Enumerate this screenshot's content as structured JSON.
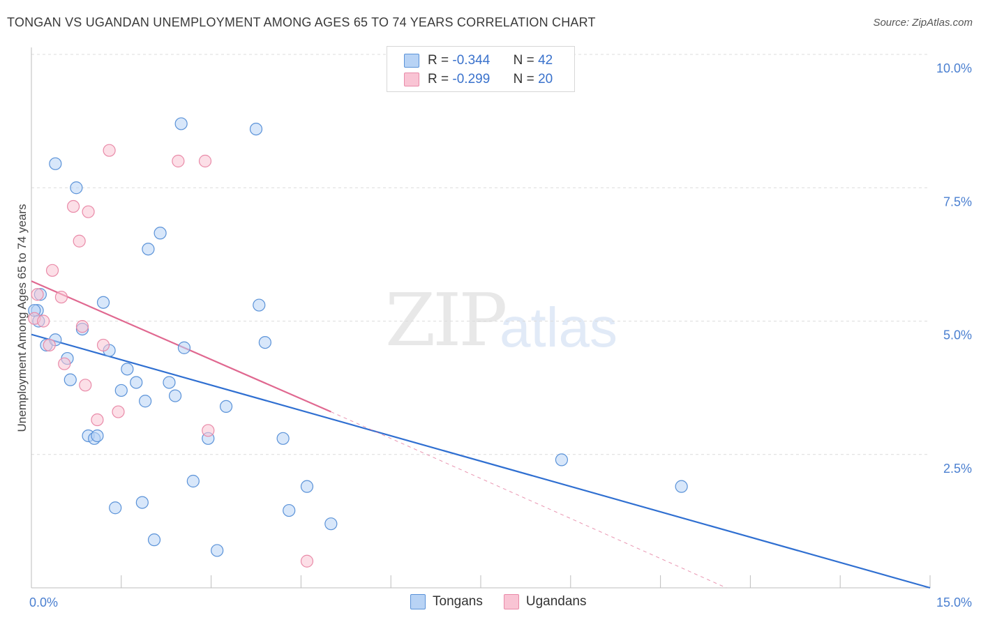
{
  "title": "TONGAN VS UGANDAN UNEMPLOYMENT AMONG AGES 65 TO 74 YEARS CORRELATION CHART",
  "source": "Source: ZipAtlas.com",
  "watermark": {
    "zip": "ZIP",
    "atlas": "atlas"
  },
  "legend": {
    "tongans": {
      "r_label": "R =",
      "r_value": "-0.344",
      "n_label": "N =",
      "n_value": "42"
    },
    "ugandans": {
      "r_label": "R =",
      "r_value": "-0.299",
      "n_label": "N =",
      "n_value": "20"
    }
  },
  "colors": {
    "tongan_fill": "#b8d3f5",
    "tongan_stroke": "#5a92d8",
    "tongan_line": "#2f6fd1",
    "ugandan_fill": "#f9c4d4",
    "ugandan_stroke": "#e98aa8",
    "ugandan_line": "#e06890"
  },
  "chart_data": {
    "type": "scatter",
    "title": "TONGAN VS UGANDAN UNEMPLOYMENT AMONG AGES 65 TO 74 YEARS CORRELATION CHART",
    "xlabel": "",
    "ylabel": "Unemployment Among Ages 65 to 74 years",
    "xlim": [
      0,
      15
    ],
    "ylim": [
      0,
      10
    ],
    "x_tick_labels": [
      "0.0%",
      "15.0%"
    ],
    "y_tick_labels": [
      "2.5%",
      "5.0%",
      "7.5%",
      "10.0%"
    ],
    "y_ticks": [
      2.5,
      5.0,
      7.5,
      10.0
    ],
    "legend_position": "bottom",
    "series": [
      {
        "name": "Tongans",
        "points": [
          [
            0.1,
            5.2
          ],
          [
            0.15,
            5.5
          ],
          [
            0.25,
            4.55
          ],
          [
            0.4,
            4.65
          ],
          [
            0.6,
            4.3
          ],
          [
            0.65,
            3.9
          ],
          [
            0.85,
            4.85
          ],
          [
            0.95,
            2.85
          ],
          [
            1.05,
            2.8
          ],
          [
            1.1,
            2.85
          ],
          [
            1.2,
            5.35
          ],
          [
            1.3,
            4.45
          ],
          [
            1.4,
            1.5
          ],
          [
            1.5,
            3.7
          ],
          [
            1.6,
            4.1
          ],
          [
            1.75,
            3.85
          ],
          [
            1.85,
            1.6
          ],
          [
            1.9,
            3.5
          ],
          [
            2.05,
            0.9
          ],
          [
            2.3,
            3.85
          ],
          [
            2.4,
            3.6
          ],
          [
            2.55,
            4.5
          ],
          [
            2.7,
            2.0
          ],
          [
            2.95,
            2.8
          ],
          [
            3.1,
            0.7
          ],
          [
            3.25,
            3.4
          ],
          [
            3.8,
            5.3
          ],
          [
            3.9,
            4.6
          ],
          [
            4.2,
            2.8
          ],
          [
            4.3,
            1.45
          ],
          [
            4.6,
            1.9
          ],
          [
            5.0,
            1.2
          ],
          [
            0.4,
            7.95
          ],
          [
            0.75,
            7.5
          ],
          [
            1.95,
            6.35
          ],
          [
            2.15,
            6.65
          ],
          [
            2.5,
            8.7
          ],
          [
            3.75,
            8.6
          ],
          [
            8.85,
            2.4
          ],
          [
            10.85,
            1.9
          ],
          [
            0.05,
            5.2
          ],
          [
            0.12,
            5.0
          ]
        ]
      },
      {
        "name": "Ugandans",
        "points": [
          [
            0.05,
            5.05
          ],
          [
            0.1,
            5.5
          ],
          [
            0.2,
            5.0
          ],
          [
            0.3,
            4.55
          ],
          [
            0.35,
            5.95
          ],
          [
            0.5,
            5.45
          ],
          [
            0.55,
            4.2
          ],
          [
            0.7,
            7.15
          ],
          [
            0.8,
            6.5
          ],
          [
            0.85,
            4.9
          ],
          [
            0.9,
            3.8
          ],
          [
            0.95,
            7.05
          ],
          [
            1.1,
            3.15
          ],
          [
            1.2,
            4.55
          ],
          [
            1.3,
            8.2
          ],
          [
            1.45,
            3.3
          ],
          [
            2.45,
            8.0
          ],
          [
            2.9,
            8.0
          ],
          [
            2.95,
            2.95
          ],
          [
            4.6,
            0.5
          ]
        ]
      }
    ],
    "trendlines": [
      {
        "name": "Tongans",
        "x": [
          0,
          15
        ],
        "y": [
          4.75,
          0.0
        ]
      },
      {
        "name": "Ugandans",
        "x": [
          0,
          5.0
        ],
        "y": [
          5.75,
          3.3
        ],
        "dashed_extension_to": [
          11.6,
          0
        ]
      }
    ]
  }
}
